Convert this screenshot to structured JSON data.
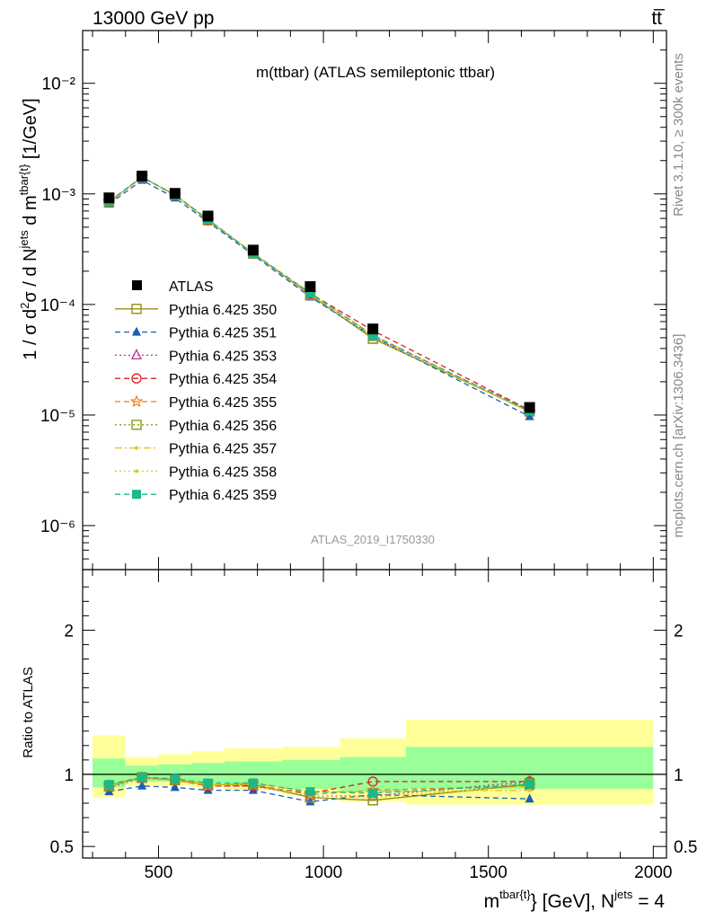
{
  "header": {
    "left": "13000 GeV pp",
    "right": "tt̅"
  },
  "side_labels": {
    "rivet": "Rivet 3.1.10, ≥ 300k events",
    "mcplots": "mcplots.cern.ch [arXiv:1306.3436]"
  },
  "analysis_id": "ATLAS_2019_I1750330",
  "chart_data": [
    {
      "type": "line",
      "title": "m(ttbar) (ATLAS semileptonic ttbar)",
      "ylabel": "1 / σ d²σ / d N^jets d m^tbar{t} [1/GeV]",
      "yscale": "log",
      "ylim": [
        4e-07,
        0.03
      ],
      "xlim": [
        270,
        2040
      ],
      "ytick_labels": [
        "10⁻⁶",
        "10⁻⁵",
        "10⁻⁴",
        "10⁻³",
        "10⁻²"
      ],
      "ytick_values": [
        1e-06,
        1e-05,
        0.0001,
        0.001,
        0.01
      ],
      "x": [
        350,
        450,
        550,
        650,
        787,
        960,
        1150,
        1625
      ],
      "data": {
        "name": "ATLAS",
        "values": [
          0.00092,
          0.00145,
          0.00101,
          0.00063,
          0.00031,
          0.000145,
          6e-05,
          1.17e-05
        ]
      },
      "series": [
        {
          "name": "Pythia 6.425 350",
          "color": "#9a8c14",
          "dash": "",
          "marker": "square-open",
          "values": [
            0.00084,
            0.00142,
            0.00098,
            0.00058,
            0.00029,
            0.000122,
            4.9e-05,
            1.08e-05
          ]
        },
        {
          "name": "Pythia 6.425 351",
          "color": "#1a5fb4",
          "dash": "6,4",
          "marker": "triangle",
          "values": [
            0.00081,
            0.00133,
            0.00092,
            0.00056,
            0.00028,
            0.000117,
            5.1e-05,
            9.7e-06
          ]
        },
        {
          "name": "Pythia 6.425 353",
          "color": "#c0359a",
          "dash": "2,3",
          "marker": "triangle-open",
          "values": [
            0.00083,
            0.00141,
            0.00097,
            0.00058,
            0.00029,
            0.000121,
            5.1e-05,
            1.11e-05
          ]
        },
        {
          "name": "Pythia 6.425 354",
          "color": "#e01b24",
          "dash": "6,4",
          "marker": "circle-open",
          "values": [
            0.00085,
            0.00142,
            0.00097,
            0.00058,
            0.00029,
            0.000126,
            5.8e-05,
            1.11e-05
          ]
        },
        {
          "name": "Pythia 6.425 355",
          "color": "#f07a1a",
          "dash": "6,4",
          "marker": "star-open",
          "values": [
            0.00085,
            0.00142,
            0.00097,
            0.00058,
            0.00029,
            0.000125,
            5.3e-05,
            1.07e-05
          ]
        },
        {
          "name": "Pythia 6.425 356",
          "color": "#8a9a1a",
          "dash": "2,3",
          "marker": "square-open",
          "values": [
            0.00085,
            0.00142,
            0.00098,
            0.00059,
            0.00029,
            0.000122,
            4.9e-05,
            1.1e-05
          ]
        },
        {
          "name": "Pythia 6.425 357",
          "color": "#e8c01a",
          "dash": "8,3,2,3",
          "marker": "dot",
          "values": [
            0.00085,
            0.00142,
            0.00098,
            0.00058,
            0.00029,
            0.000127,
            5.3e-05,
            1.05e-05
          ]
        },
        {
          "name": "Pythia 6.425 358",
          "color": "#c8d41a",
          "dash": "2,3",
          "marker": "dot",
          "values": [
            0.00084,
            0.00141,
            0.00097,
            0.00058,
            0.00029,
            0.000123,
            5e-05,
            1.08e-05
          ]
        },
        {
          "name": "Pythia 6.425 359",
          "color": "#1ab88a",
          "dash": "6,4",
          "marker": "square",
          "values": [
            0.00086,
            0.00142,
            0.00098,
            0.00059,
            0.00029,
            0.000127,
            5.2e-05,
            1.09e-05
          ]
        }
      ]
    },
    {
      "type": "line",
      "ylabel": "Ratio to ATLAS",
      "xlabel": "m^tbar{t} [GeV], N^jets = 4",
      "xlim": [
        270,
        2040
      ],
      "ylim": [
        0.42,
        2.42
      ],
      "xtick_values": [
        500,
        1000,
        1500,
        2000
      ],
      "xtick_labels": [
        "500",
        "1000",
        "1500",
        "2000"
      ],
      "ytick_values": [
        0.5,
        1,
        2
      ],
      "ytick_labels": [
        "0.5",
        "1",
        "2"
      ],
      "bins": [
        [
          300,
          400
        ],
        [
          400,
          500
        ],
        [
          500,
          600
        ],
        [
          600,
          700
        ],
        [
          700,
          875
        ],
        [
          875,
          1050
        ],
        [
          1050,
          1250
        ],
        [
          1250,
          2000
        ]
      ],
      "band_green": [
        [
          0.91,
          1.11
        ],
        [
          0.95,
          1.06
        ],
        [
          0.95,
          1.07
        ],
        [
          0.94,
          1.08
        ],
        [
          0.92,
          1.09
        ],
        [
          0.9,
          1.1
        ],
        [
          0.88,
          1.12
        ],
        [
          0.9,
          1.19
        ]
      ],
      "band_yellow": [
        [
          0.84,
          1.27
        ],
        [
          0.92,
          1.12
        ],
        [
          0.92,
          1.14
        ],
        [
          0.91,
          1.16
        ],
        [
          0.89,
          1.18
        ],
        [
          0.86,
          1.19
        ],
        [
          0.81,
          1.25
        ],
        [
          0.79,
          1.38
        ]
      ],
      "series": [
        {
          "name": "Pythia 6.425 350",
          "values": [
            0.92,
            0.98,
            0.96,
            0.93,
            0.93,
            0.84,
            0.82,
            0.93
          ]
        },
        {
          "name": "Pythia 6.425 351",
          "values": [
            0.88,
            0.92,
            0.91,
            0.89,
            0.89,
            0.81,
            0.86,
            0.83
          ]
        },
        {
          "name": "Pythia 6.425 353",
          "values": [
            0.91,
            0.97,
            0.96,
            0.92,
            0.92,
            0.85,
            0.85,
            0.95
          ]
        },
        {
          "name": "Pythia 6.425 354",
          "values": [
            0.92,
            0.98,
            0.96,
            0.92,
            0.92,
            0.87,
            0.95,
            0.95
          ]
        },
        {
          "name": "Pythia 6.425 355",
          "values": [
            0.92,
            0.98,
            0.96,
            0.92,
            0.93,
            0.86,
            0.89,
            0.92
          ]
        },
        {
          "name": "Pythia 6.425 356",
          "values": [
            0.92,
            0.98,
            0.96,
            0.93,
            0.93,
            0.84,
            0.82,
            0.94
          ]
        },
        {
          "name": "Pythia 6.425 357",
          "values": [
            0.93,
            0.98,
            0.97,
            0.93,
            0.94,
            0.88,
            0.88,
            0.89
          ]
        },
        {
          "name": "Pythia 6.425 358",
          "values": [
            0.92,
            0.97,
            0.96,
            0.93,
            0.93,
            0.85,
            0.84,
            0.92
          ]
        },
        {
          "name": "Pythia 6.425 359",
          "values": [
            0.93,
            0.98,
            0.97,
            0.94,
            0.94,
            0.88,
            0.87,
            0.93
          ]
        }
      ]
    }
  ]
}
